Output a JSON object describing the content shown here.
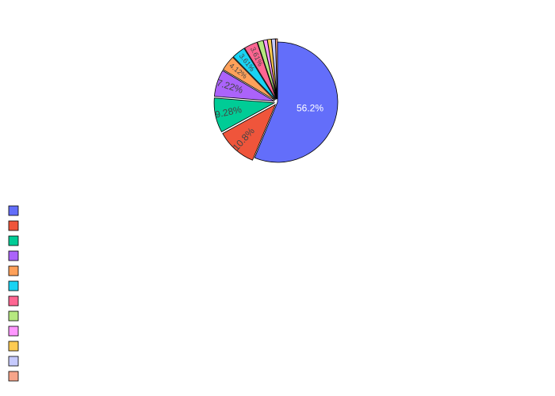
{
  "chart_data": {
    "type": "pie",
    "title": "",
    "slices": [
      {
        "label": "",
        "percent": 56.2,
        "value_label": "56.2%",
        "color": "#636efa",
        "pulled": false
      },
      {
        "label": "",
        "percent": 10.8,
        "value_label": "10.8%",
        "color": "#ef553b",
        "pulled": true
      },
      {
        "label": "",
        "percent": 9.28,
        "value_label": "9.28%",
        "color": "#00cc96",
        "pulled": true
      },
      {
        "label": "",
        "percent": 7.22,
        "value_label": "7.22%",
        "color": "#ab63fa",
        "pulled": true
      },
      {
        "label": "",
        "percent": 4.12,
        "value_label": "4.12%",
        "color": "#ffa15a",
        "pulled": true
      },
      {
        "label": "",
        "percent": 3.61,
        "value_label": "3.61%",
        "color": "#19d3f3",
        "pulled": true
      },
      {
        "label": "",
        "percent": 3.61,
        "value_label": "3.61%",
        "color": "#ff6692",
        "pulled": true
      },
      {
        "label": "",
        "percent": 1.55,
        "value_label": "",
        "color": "#b6e880",
        "pulled": true
      },
      {
        "label": "",
        "percent": 1.03,
        "value_label": "",
        "color": "#ff97ff",
        "pulled": true
      },
      {
        "label": "",
        "percent": 1.03,
        "value_label": "",
        "color": "#fecb52",
        "pulled": true
      },
      {
        "label": "",
        "percent": 1.03,
        "value_label": "",
        "color": "#c6cafd",
        "pulled": true
      },
      {
        "label": "",
        "percent": 0.52,
        "value_label": "",
        "color": "#f7a58a",
        "pulled": true
      }
    ],
    "direction": "clockwise",
    "start_angle_deg": 0,
    "legend": {
      "position": "bottom-left",
      "orientation": "vertical"
    }
  }
}
